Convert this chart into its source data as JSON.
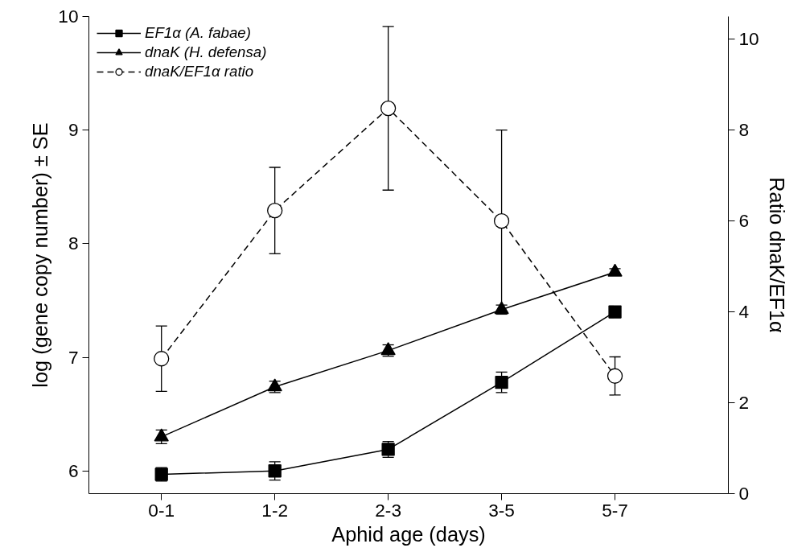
{
  "chart_data": {
    "type": "line",
    "xlabel": "Aphid age (days)",
    "ylabel": "log (gene copy number) ± SE",
    "y2label": "Ratio dnaK/EF1α",
    "categories": [
      "0-1",
      "1-2",
      "2-3",
      "3-5",
      "5-7"
    ],
    "series": [
      {
        "name": "EF1α (A. fabae)",
        "color": "#000000",
        "marker": "square",
        "line_style": "solid",
        "values": [
          5.97,
          6.0,
          6.19,
          6.78,
          7.4
        ],
        "errors": [
          0.06,
          0.08,
          0.07,
          0.09,
          0.05
        ]
      },
      {
        "name": "dnaK (H. defensa)",
        "color": "#000000",
        "marker": "triangle",
        "line_style": "solid",
        "values": [
          6.3,
          6.74,
          7.06,
          7.42,
          7.75
        ],
        "errors": [
          0.06,
          0.05,
          0.05,
          0.04,
          0.03
        ]
      },
      {
        "name": "dnaK/EF1α ratio",
        "color": "#000000",
        "marker": "circle",
        "line_style": "dashed",
        "axis": "y2",
        "values": [
          2.97,
          6.23,
          8.48,
          6.0,
          2.59
        ],
        "errors": [
          0.72,
          0.95,
          1.8,
          2.0,
          0.42
        ]
      }
    ],
    "ylim": [
      5.8,
      10.0
    ],
    "yticks": [
      6,
      7,
      8,
      9,
      10
    ],
    "y2lim": [
      0,
      10.5
    ],
    "y2ticks": [
      0,
      2,
      4,
      6,
      8,
      10
    ],
    "grid": false,
    "legend": "top left"
  }
}
